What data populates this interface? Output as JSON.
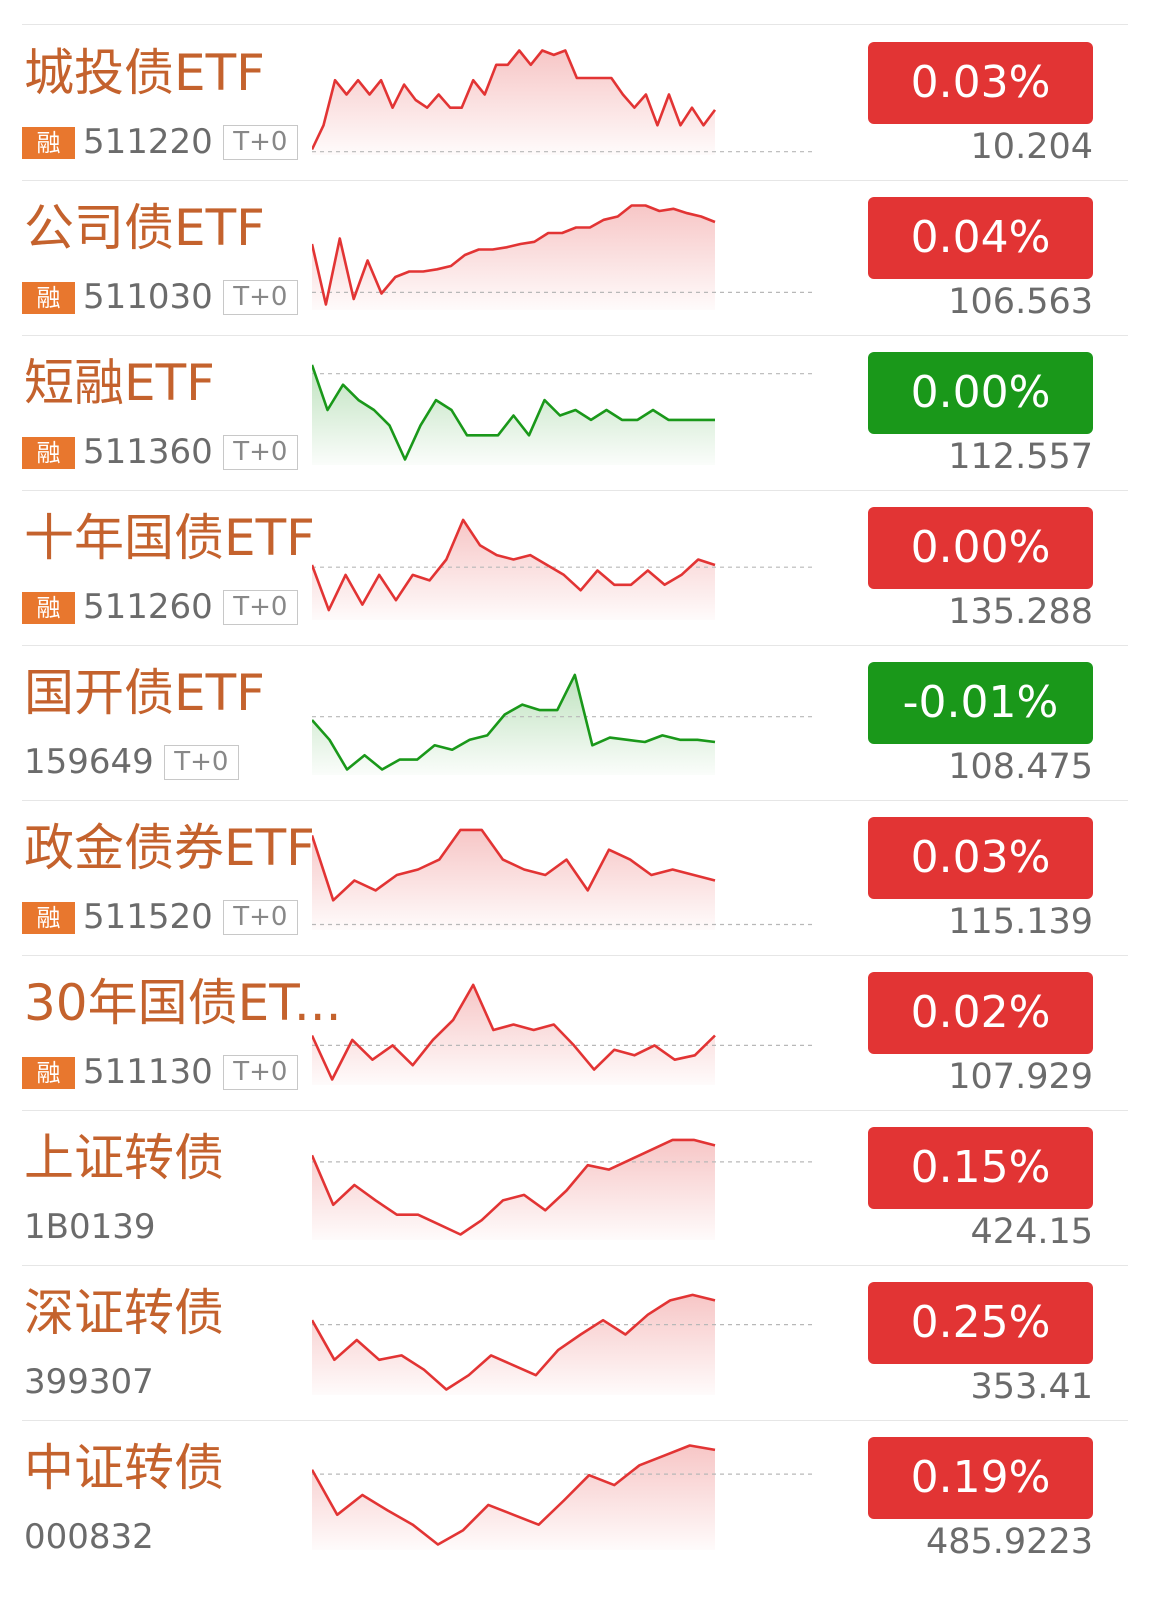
{
  "sparkline_range": [
    0,
    100
  ],
  "items": [
    {
      "name": "城投债ETF",
      "badge": "融",
      "code": "511220",
      "tag": "T+0",
      "change": "0.03%",
      "price": "10.204",
      "color": "#e23434",
      "sparkline": {
        "base": 3,
        "values": [
          5,
          27,
          68,
          55,
          68,
          55,
          68,
          43,
          64,
          50,
          43,
          55,
          43,
          43,
          68,
          55,
          82,
          82,
          95,
          82,
          95,
          91,
          95,
          70,
          70,
          70,
          70,
          55,
          43,
          55,
          27,
          55,
          27,
          43,
          27,
          41
        ]
      }
    },
    {
      "name": "公司债ETF",
      "badge": "融",
      "code": "511030",
      "tag": "T+0",
      "change": "0.04%",
      "price": "106.563",
      "color": "#e23434",
      "sparkline": {
        "base": 16,
        "values": [
          60,
          5,
          65,
          10,
          45,
          15,
          30,
          35,
          35,
          37,
          40,
          50,
          55,
          55,
          57,
          60,
          62,
          70,
          70,
          75,
          75,
          82,
          85,
          95,
          95,
          90,
          92,
          88,
          85,
          80
        ]
      }
    },
    {
      "name": "短融ETF",
      "badge": "融",
      "code": "511360",
      "tag": "T+0",
      "change": "0.00%",
      "price": "112.557",
      "color": "#1a981a",
      "sparkline": {
        "base": 83,
        "values": [
          91,
          50,
          73,
          59,
          50,
          36,
          5,
          36,
          59,
          50,
          27,
          27,
          27,
          45,
          27,
          59,
          45,
          50,
          41,
          50,
          41,
          41,
          50,
          41,
          41,
          41,
          41
        ]
      }
    },
    {
      "name": "十年国债ETF",
      "badge": "融",
      "code": "511260",
      "tag": "T+0",
      "change": "0.00%",
      "price": "135.288",
      "color": "#e23434",
      "sparkline": {
        "base": 48,
        "values": [
          50,
          9,
          41,
          14,
          41,
          18,
          41,
          36,
          55,
          91,
          68,
          59,
          55,
          59,
          50,
          41,
          27,
          45,
          32,
          32,
          45,
          32,
          41,
          55,
          50
        ]
      }
    },
    {
      "name": "国开债ETF",
      "code": "159649",
      "tag": "T+0",
      "change": "-0.01%",
      "price": "108.475",
      "color": "#1a981a",
      "sparkline": {
        "base": 53,
        "values": [
          50,
          32,
          5,
          18,
          5,
          14,
          14,
          27,
          23,
          32,
          36,
          55,
          64,
          59,
          59,
          91,
          27,
          34,
          32,
          30,
          36,
          32,
          32,
          30
        ]
      }
    },
    {
      "name": "政金债券ETF",
      "badge": "融",
      "code": "511520",
      "tag": "T+0",
      "change": "0.03%",
      "price": "115.139",
      "color": "#e23434",
      "sparkline": {
        "base": 5,
        "values": [
          86,
          27,
          45,
          36,
          50,
          55,
          64,
          91,
          91,
          64,
          55,
          50,
          64,
          36,
          73,
          64,
          50,
          55,
          50,
          45
        ]
      }
    },
    {
      "name": "30年国债ET...",
      "badge": "融",
      "code": "511130",
      "tag": "T+0",
      "change": "0.02%",
      "price": "107.929",
      "color": "#e23434",
      "sparkline": {
        "base": 36,
        "values": [
          45,
          5,
          41,
          23,
          36,
          18,
          41,
          59,
          91,
          50,
          55,
          50,
          55,
          36,
          14,
          32,
          27,
          36,
          23,
          27,
          45
        ]
      }
    },
    {
      "name": "上证转债",
      "code": "1B0139",
      "change": "0.15%",
      "price": "424.15",
      "color": "#e23434",
      "sparkline": {
        "base": 71,
        "values": [
          77,
          32,
          50,
          36,
          23,
          23,
          14,
          5,
          18,
          36,
          41,
          27,
          45,
          68,
          64,
          73,
          82,
          91,
          91,
          86
        ]
      }
    },
    {
      "name": "深证转债",
      "code": "399307",
      "change": "0.25%",
      "price": "353.41",
      "color": "#e23434",
      "sparkline": {
        "base": 64,
        "values": [
          68,
          32,
          50,
          32,
          36,
          23,
          5,
          18,
          36,
          27,
          18,
          41,
          55,
          68,
          55,
          73,
          86,
          91,
          86
        ]
      }
    },
    {
      "name": "中证转债",
      "code": "000832",
      "change": "0.19%",
      "price": "485.9223",
      "color": "#e23434",
      "sparkline": {
        "base": 69,
        "values": [
          73,
          32,
          50,
          36,
          23,
          5,
          18,
          41,
          32,
          23,
          45,
          68,
          59,
          77,
          86,
          95,
          91
        ]
      }
    }
  ]
}
